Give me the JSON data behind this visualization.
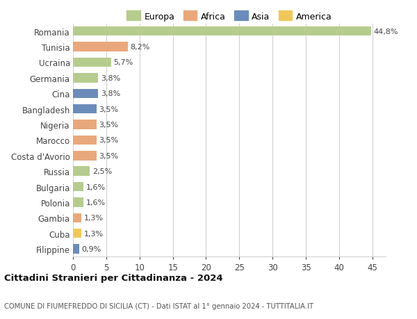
{
  "categories": [
    "Romania",
    "Tunisia",
    "Ucraina",
    "Germania",
    "Cina",
    "Bangladesh",
    "Nigeria",
    "Marocco",
    "Costa d'Avorio",
    "Russia",
    "Bulgaria",
    "Polonia",
    "Gambia",
    "Cuba",
    "Filippine"
  ],
  "values": [
    44.8,
    8.2,
    5.7,
    3.8,
    3.8,
    3.5,
    3.5,
    3.5,
    3.5,
    2.5,
    1.6,
    1.6,
    1.3,
    1.3,
    0.9
  ],
  "bar_colors": [
    "#b5cc8e",
    "#e9a87c",
    "#b5cc8e",
    "#b5cc8e",
    "#6b8cba",
    "#6b8cba",
    "#e9a87c",
    "#e9a87c",
    "#e9a87c",
    "#b5cc8e",
    "#b5cc8e",
    "#b5cc8e",
    "#e9a87c",
    "#f0c85a",
    "#6b8cba"
  ],
  "labels": [
    "44,8%",
    "8,2%",
    "5,7%",
    "3,8%",
    "3,8%",
    "3,5%",
    "3,5%",
    "3,5%",
    "3,5%",
    "2,5%",
    "1,6%",
    "1,6%",
    "1,3%",
    "1,3%",
    "0,9%"
  ],
  "legend": [
    {
      "label": "Europa",
      "color": "#b5cc8e"
    },
    {
      "label": "Africa",
      "color": "#e9a87c"
    },
    {
      "label": "Asia",
      "color": "#6b8cba"
    },
    {
      "label": "America",
      "color": "#f0c85a"
    }
  ],
  "title": "Cittadini Stranieri per Cittadinanza - 2024",
  "subtitle": "COMUNE DI FIUMEFREDDO DI SICILIA (CT) - Dati ISTAT al 1° gennaio 2024 - TUTTITALIA.IT",
  "xlim": [
    0,
    47
  ],
  "xticks": [
    0,
    5,
    10,
    15,
    20,
    25,
    30,
    35,
    40,
    45
  ],
  "background_color": "#ffffff",
  "grid_color": "#d0d0d0",
  "bar_height": 0.6,
  "label_fontsize": 8,
  "ytick_fontsize": 8.5,
  "xtick_fontsize": 8.5
}
